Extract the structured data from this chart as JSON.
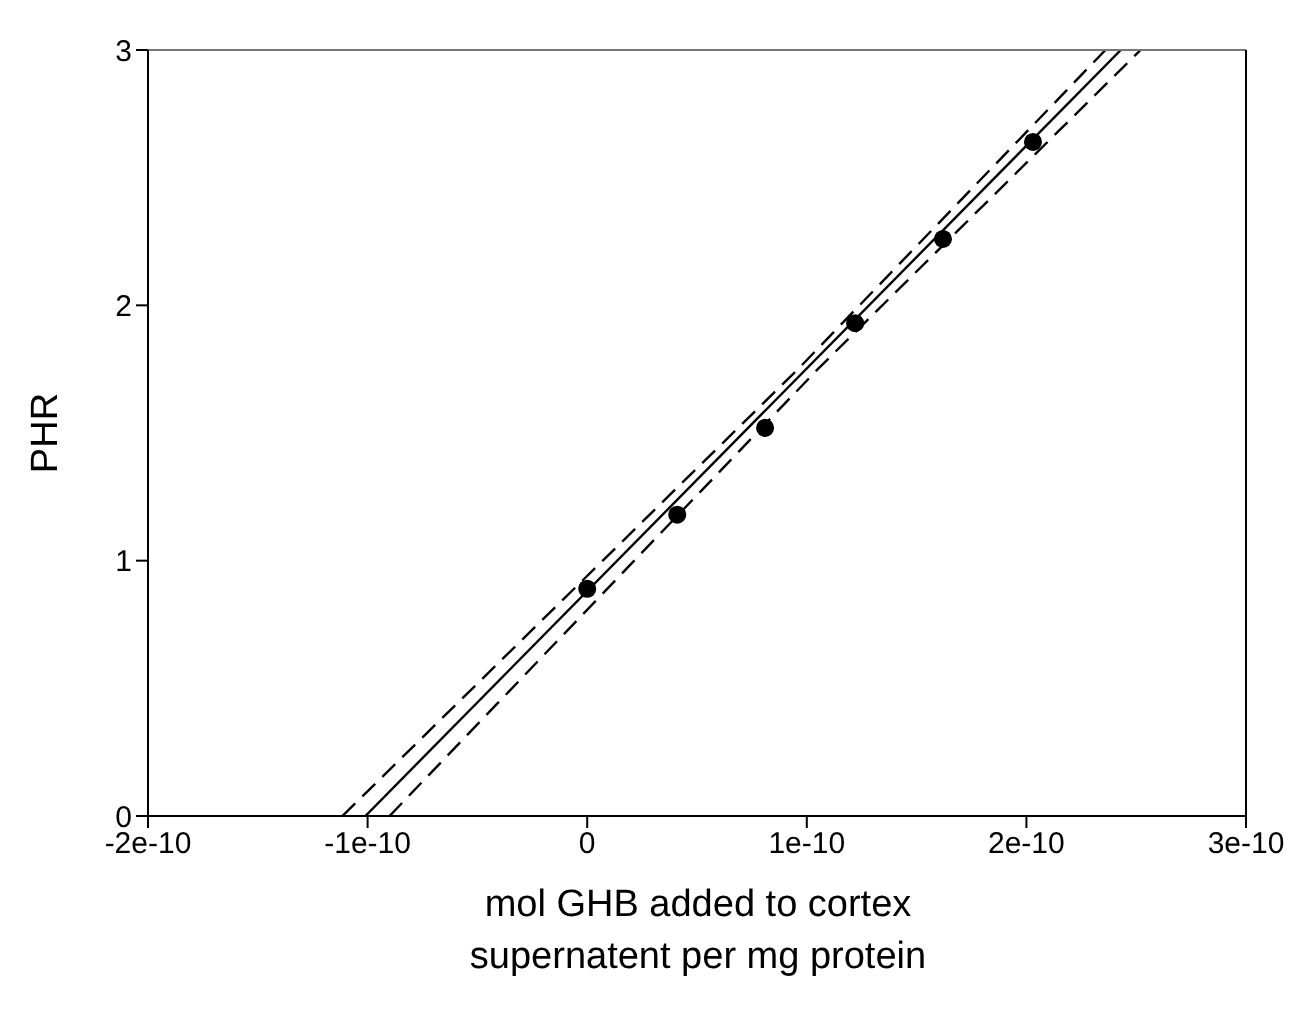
{
  "chart_data": {
    "type": "scatter",
    "xlabel": "mol GHB added to cortex supernatent per mg protein",
    "ylabel": "PHR",
    "xlim": [
      -2e-10,
      3e-10
    ],
    "xticks": [
      -2e-10,
      -1e-10,
      0,
      1e-10,
      2e-10,
      3e-10
    ],
    "ylim": [
      0,
      3
    ],
    "yticks": [
      0,
      1,
      2,
      3
    ],
    "grid": false,
    "series": [
      {
        "color": "#000000",
        "marker": "circle",
        "x": [
          0,
          4.1e-11,
          8.1e-11,
          1.22e-10,
          1.62e-10,
          2.03e-10
        ],
        "values": [
          0.89,
          1.18,
          1.52,
          1.93,
          2.26,
          2.64
        ]
      },
      {
        "type": "line",
        "color": "#000000",
        "line_style": "solid",
        "marker": "none",
        "x": [
          -1.01e-10,
          2.43e-10
        ],
        "values": [
          0,
          3
        ]
      },
      {
        "type": "line",
        "color": "#000000",
        "line_style": "dashed",
        "marker": "none",
        "x": [
          -1.115e-10,
          9.6e-11,
          2.36e-10
        ],
        "values": [
          0,
          1.75,
          3
        ]
      },
      {
        "type": "line",
        "color": "#000000",
        "line_style": "dashed",
        "marker": "none",
        "x": [
          -9e-11,
          1.05e-10,
          2.52e-10
        ],
        "values": [
          0,
          1.75,
          3
        ]
      }
    ]
  }
}
